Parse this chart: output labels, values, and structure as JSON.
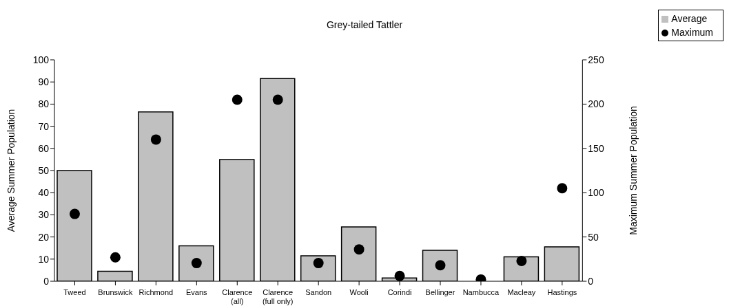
{
  "chart_data": {
    "type": "bar",
    "title": "Grey-tailed Tattler",
    "categories": [
      "Tweed",
      "Brunswick",
      "Richmond",
      "Evans",
      "Clarence\n(all)",
      "Clarence\n(full only)",
      "Sandon",
      "Wooli",
      "Corindi",
      "Bellinger",
      "Nambucca",
      "Macleay",
      "Hastings"
    ],
    "series": [
      {
        "name": "Average",
        "color": "#c0c0c0",
        "values": [
          50,
          4.5,
          76.5,
          16,
          55,
          91.5,
          11.5,
          24.5,
          1.5,
          14,
          0,
          11,
          15.5
        ]
      },
      {
        "name": "Maximum",
        "type": "scatter",
        "axis": "y2",
        "color": "#000000",
        "values": [
          76,
          27,
          160,
          20.5,
          205,
          205,
          20.5,
          36,
          6,
          18,
          2,
          23,
          105
        ]
      }
    ],
    "ylabel": "Average Summer Population",
    "y2label": "Maximum Summer Population",
    "ylim": [
      0,
      100
    ],
    "yticks": [
      0,
      10,
      20,
      30,
      40,
      50,
      60,
      70,
      80,
      90,
      100
    ],
    "y2lim": [
      0,
      250
    ],
    "y2ticks": [
      0,
      50,
      100,
      150,
      200,
      250
    ],
    "grid": false,
    "legend": "top right",
    "marker": "circle"
  }
}
